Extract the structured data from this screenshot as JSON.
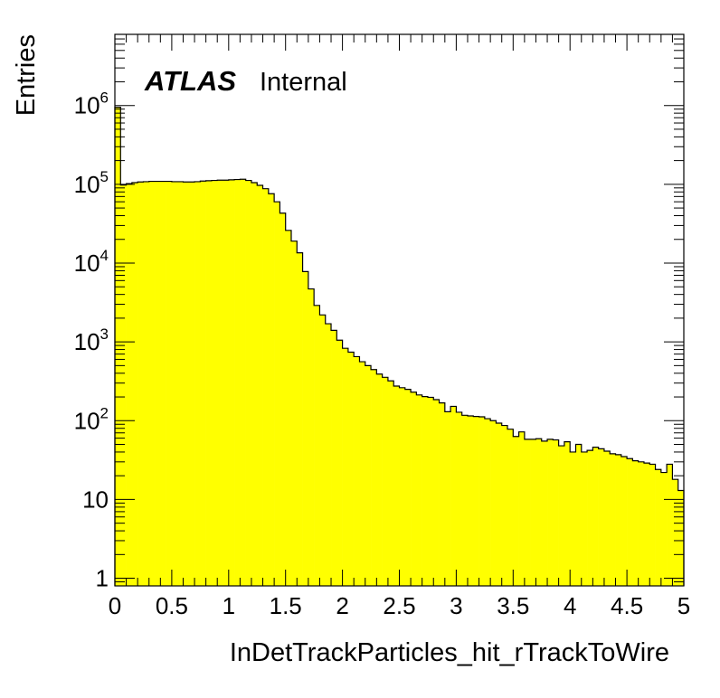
{
  "chart_data": {
    "type": "bar",
    "histogram": true,
    "fill_color": "#ffff00",
    "line_color": "#000000",
    "xlabel": "InDetTrackParticles_hit_rTrackToWire",
    "ylabel": "Entries",
    "log_y": true,
    "xlim": [
      0,
      5
    ],
    "ylim": [
      0.8,
      8000000
    ],
    "bin_width": 0.05,
    "x_ticks": [
      "0",
      "0.5",
      "1",
      "1.5",
      "2",
      "2.5",
      "3",
      "3.5",
      "4",
      "4.5",
      "5"
    ],
    "y_ticks": [
      {
        "value": 1,
        "base": "1",
        "exp": ""
      },
      {
        "value": 10,
        "base": "10",
        "exp": ""
      },
      {
        "value": 100,
        "base": "10",
        "exp": "2"
      },
      {
        "value": 1000,
        "base": "10",
        "exp": "3"
      },
      {
        "value": 10000,
        "base": "10",
        "exp": "4"
      },
      {
        "value": 100000,
        "base": "10",
        "exp": "5"
      },
      {
        "value": 1000000,
        "base": "10",
        "exp": "6"
      }
    ],
    "values": [
      950000,
      98000,
      102000,
      105000,
      107000,
      108000,
      109000,
      109000,
      109000,
      109000,
      108000,
      108000,
      107000,
      107000,
      108000,
      110000,
      111000,
      112000,
      113000,
      113000,
      114000,
      115000,
      116000,
      112000,
      105000,
      97000,
      88000,
      76000,
      60000,
      43000,
      26000,
      19000,
      13500,
      7800,
      4700,
      2900,
      2200,
      1700,
      1400,
      1050,
      830,
      740,
      650,
      560,
      500,
      445,
      390,
      355,
      320,
      275,
      262,
      250,
      230,
      212,
      202,
      198,
      185,
      168,
      130,
      152,
      128,
      117,
      115,
      113,
      112,
      106,
      100,
      93,
      87,
      78,
      63,
      72,
      58,
      58,
      59,
      55,
      58,
      57,
      48,
      54,
      40,
      50,
      40,
      42,
      46,
      44,
      41,
      38,
      37,
      35,
      33,
      31,
      30,
      29,
      28,
      24,
      22,
      28,
      18,
      13
    ]
  },
  "labels": {
    "atlas": "ATLAS",
    "internal": "Internal"
  }
}
